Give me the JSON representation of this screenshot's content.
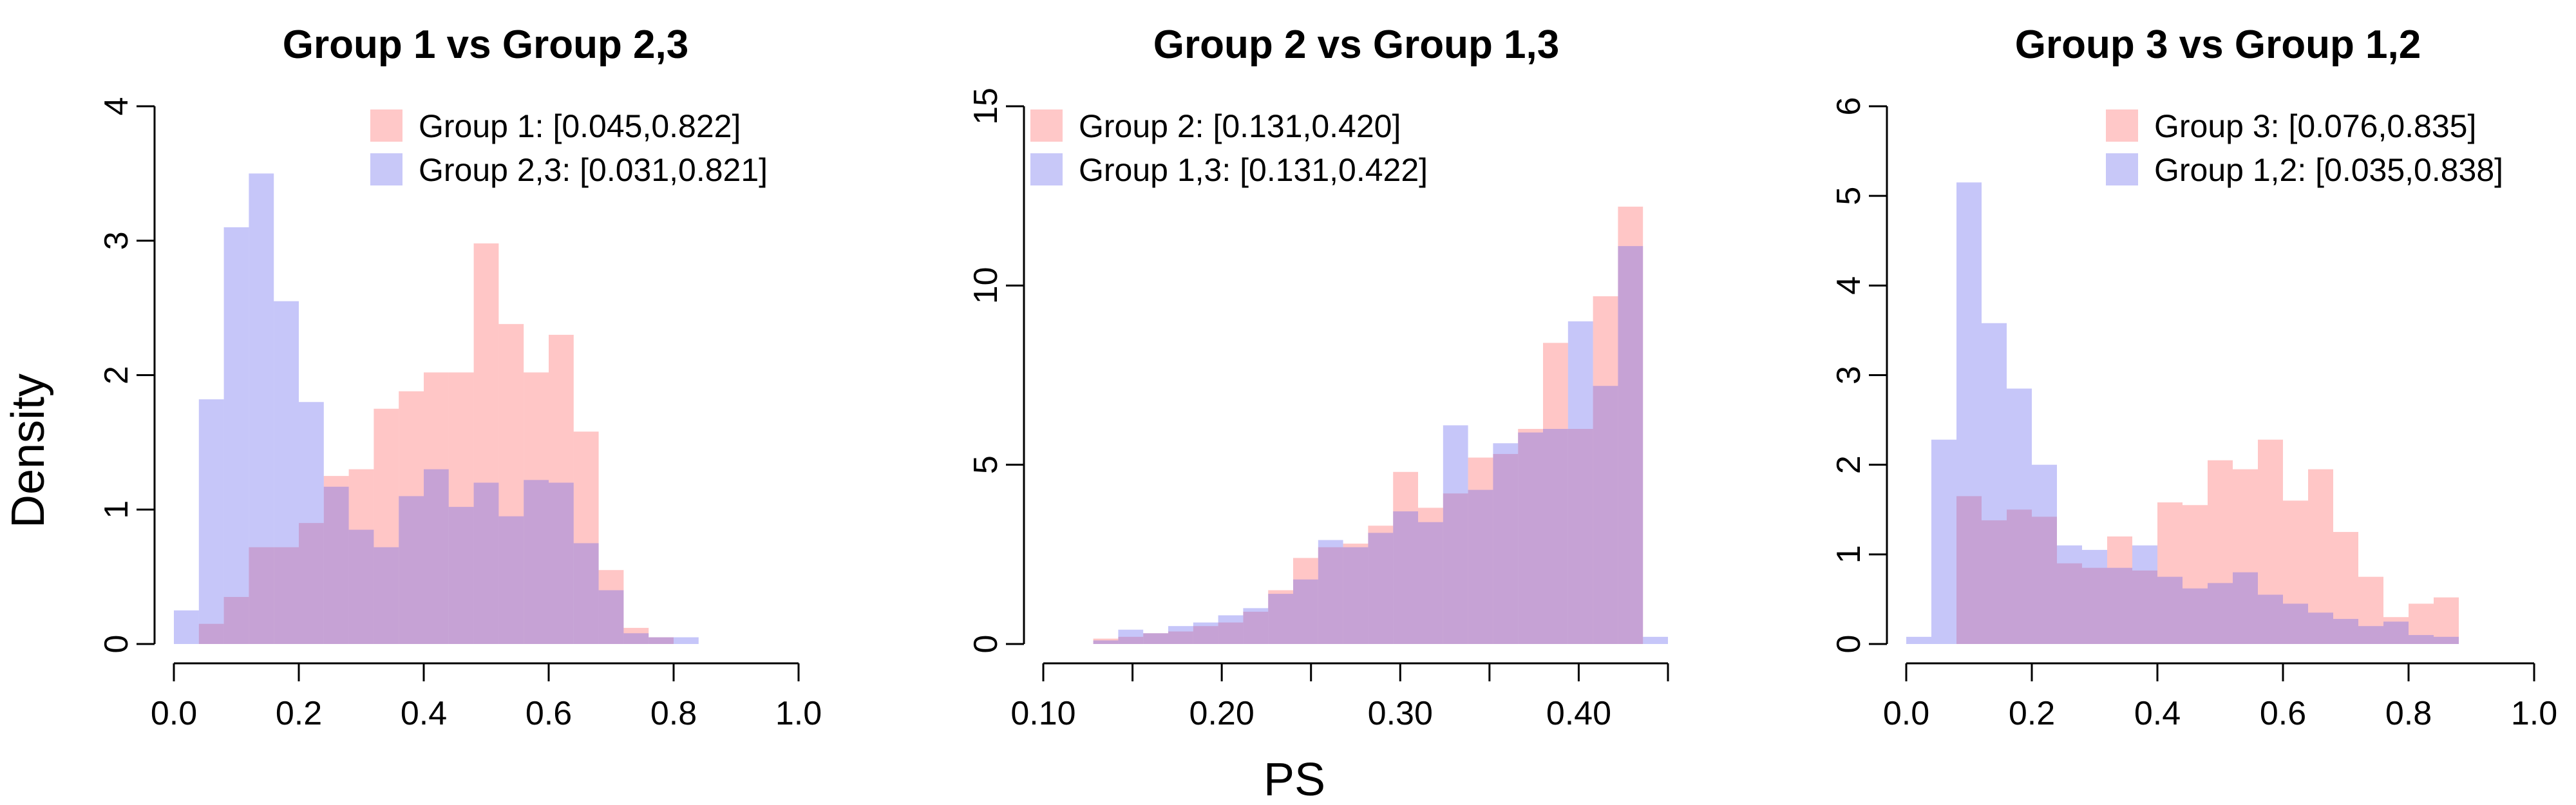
{
  "figure": {
    "ylabel": "Density",
    "xlabel": "PS"
  },
  "chart_data": [
    {
      "type": "histogram",
      "title": "Group 1 vs Group 2,3",
      "xlim": [
        0,
        1
      ],
      "ylim": [
        0,
        4
      ],
      "xticks": [
        0,
        0.2,
        0.4,
        0.6,
        0.8,
        1.0
      ],
      "xtick_labels": [
        "0.0",
        "0.2",
        "0.4",
        "0.6",
        "0.8",
        "1.0"
      ],
      "yticks": [
        0,
        1,
        2,
        3,
        4
      ],
      "ytick_labels": [
        "0",
        "1",
        "2",
        "3",
        "4"
      ],
      "legend_position": "top-right",
      "bin_start": 0,
      "bin_width": 0.04,
      "series": [
        {
          "name": "Group 1: [0.045,0.822]",
          "color": "#FFC8C8",
          "values": [
            0,
            0.15,
            0.35,
            0.72,
            0.72,
            0.9,
            1.25,
            1.3,
            1.75,
            1.88,
            2.02,
            2.02,
            2.98,
            2.38,
            2.02,
            2.3,
            1.58,
            0.55,
            0.12,
            0.05,
            0,
            0,
            0,
            0,
            0
          ]
        },
        {
          "name": "Group 2,3: [0.031,0.821]",
          "color": "#C8C8F8",
          "values": [
            0.25,
            1.82,
            3.1,
            3.5,
            2.55,
            1.8,
            1.17,
            0.85,
            0.72,
            1.1,
            1.3,
            1.02,
            1.2,
            0.95,
            1.22,
            1.2,
            0.75,
            0.4,
            0.08,
            0.05,
            0.05,
            0,
            0,
            0,
            0
          ]
        }
      ]
    },
    {
      "type": "histogram",
      "title": "Group 2 vs Group 1,3",
      "xlim": [
        0.1,
        0.45
      ],
      "ylim": [
        0,
        15
      ],
      "xticks": [
        0.1,
        0.15,
        0.2,
        0.25,
        0.3,
        0.35,
        0.4,
        0.45
      ],
      "xtick_labels": [
        "0.10",
        "",
        "0.20",
        "",
        "0.30",
        "",
        "0.40",
        ""
      ],
      "yticks": [
        0,
        5,
        10,
        15
      ],
      "ytick_labels": [
        "0",
        "5",
        "10",
        "15"
      ],
      "legend_position": "top-left",
      "bin_start": 0.1,
      "bin_width": 0.014,
      "series": [
        {
          "name": "Group 2: [0.131,0.420]",
          "color": "#FFC8C8",
          "values": [
            0,
            0,
            0.15,
            0.2,
            0.3,
            0.35,
            0.5,
            0.6,
            0.9,
            1.5,
            2.4,
            2.7,
            2.8,
            3.3,
            4.8,
            3.8,
            4.2,
            5.2,
            5.3,
            6.0,
            8.4,
            6.0,
            9.7,
            12.2,
            0
          ]
        },
        {
          "name": "Group 1,3: [0.131,0.422]",
          "color": "#C8C8F8",
          "values": [
            0,
            0,
            0.1,
            0.4,
            0.3,
            0.5,
            0.6,
            0.8,
            1.0,
            1.4,
            1.8,
            2.9,
            2.7,
            3.1,
            3.7,
            3.4,
            6.1,
            4.3,
            5.6,
            5.9,
            6.0,
            9.0,
            7.2,
            11.1,
            0.2
          ]
        }
      ]
    },
    {
      "type": "histogram",
      "title": "Group 3 vs Group 1,2",
      "xlim": [
        0,
        1
      ],
      "ylim": [
        0,
        6
      ],
      "xticks": [
        0,
        0.2,
        0.4,
        0.6,
        0.8,
        1.0
      ],
      "xtick_labels": [
        "0.0",
        "0.2",
        "0.4",
        "0.6",
        "0.8",
        "1.0"
      ],
      "yticks": [
        0,
        1,
        2,
        3,
        4,
        5,
        6
      ],
      "ytick_labels": [
        "0",
        "1",
        "2",
        "3",
        "4",
        "5",
        "6"
      ],
      "legend_position": "top-right",
      "bin_start": 0,
      "bin_width": 0.04,
      "series": [
        {
          "name": "Group 3: [0.076,0.835]",
          "color": "#FFC8C8",
          "values": [
            0,
            0,
            1.65,
            1.38,
            1.5,
            1.42,
            0.9,
            0.85,
            1.2,
            0.82,
            1.58,
            1.55,
            2.05,
            1.95,
            2.28,
            1.6,
            1.95,
            1.25,
            0.75,
            0.3,
            0.45,
            0.52,
            0,
            0,
            0
          ]
        },
        {
          "name": "Group 1,2: [0.035,0.838]",
          "color": "#C8C8F8",
          "values": [
            0.08,
            2.28,
            5.15,
            3.58,
            2.85,
            2.0,
            1.1,
            1.05,
            0.85,
            1.1,
            0.75,
            0.62,
            0.68,
            0.8,
            0.55,
            0.45,
            0.35,
            0.28,
            0.2,
            0.25,
            0.1,
            0.08,
            0,
            0,
            0
          ]
        }
      ]
    }
  ]
}
